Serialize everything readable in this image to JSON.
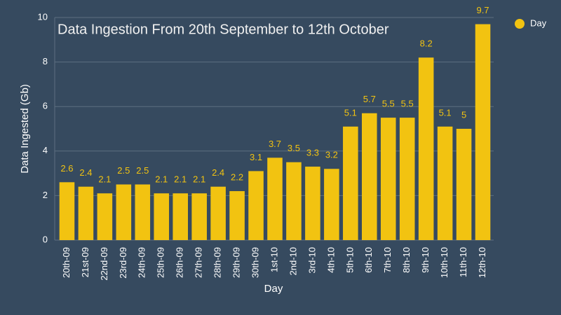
{
  "chart_data": {
    "type": "bar",
    "title": "Data Ingestion From 20th September to 12th October",
    "x_label": "Day",
    "y_label": "Data Ingested (Gb)",
    "categories": [
      "20th-09",
      "21st-09",
      "22nd-09",
      "23rd-09",
      "24th-09",
      "25th-09",
      "26th-09",
      "27th-09",
      "28th-09",
      "29th-09",
      "30th-09",
      "1st-10",
      "2nd-10",
      "3rd-10",
      "4th-10",
      "5th-10",
      "6th-10",
      "7th-10",
      "8th-10",
      "9th-10",
      "10th-10",
      "11th-10",
      "12th-10"
    ],
    "series": [
      {
        "name": "Day",
        "color": "#f2c311",
        "values": [
          2.6,
          2.4,
          2.1,
          2.5,
          2.5,
          2.1,
          2.1,
          2.1,
          2.4,
          2.2,
          3.1,
          3.7,
          3.5,
          3.3,
          3.2,
          5.1,
          5.7,
          5.5,
          5.5,
          8.2,
          5.1,
          5,
          9.7
        ]
      }
    ],
    "ylim": [
      0,
      10
    ],
    "yticks": [
      0,
      2,
      4,
      6,
      8,
      10
    ],
    "grid": true,
    "legend": "top-right",
    "data_labels": true
  }
}
